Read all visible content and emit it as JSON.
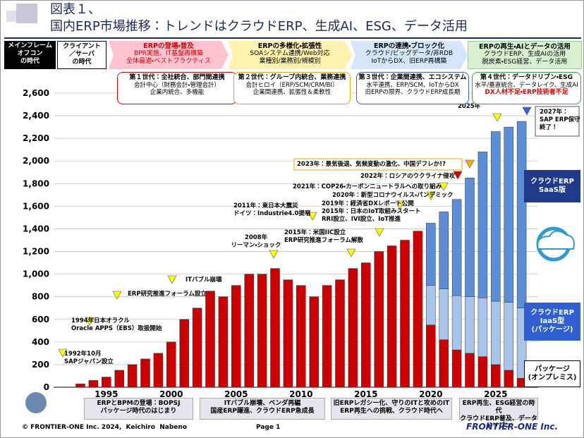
{
  "header": {
    "figure": "図表１、",
    "title": "国内ERP市場推移：トレンドはクラウドERP、生成AI、ESG、データ活用"
  },
  "eras": [
    {
      "title": "メインフレーム\nオフコン\nの時代"
    },
    {
      "title": "クライアント\n／サーバ\nの時代"
    },
    {
      "title": "ERPの登場・普及",
      "text": "BPR実施、IT基盤再構築\n全体最適・ベストプラクティス"
    },
    {
      "title": "ERPの多様化・拡張性",
      "text": "SOAシステム連携/Web対応\n業種別/業務別/規模別"
    },
    {
      "title": "ERPの連携・ブロック化",
      "text": "クラウド/ビッグデータ/非RDB\nIoTからDX、旧ERP再構築"
    },
    {
      "title": "ERPの再生・AIとデータの活用",
      "text": "クラウドERP、生成AIの活用\n脱炭素・ESG経営、データ活用"
    }
  ],
  "generations": [
    {
      "title": "第１世代：全社統合、部門間連携",
      "text": "会計中心（財務会計・管理会計）\n企業内統合、多機能"
    },
    {
      "title": "第２世代：グループ内統合、業務連携",
      "text": "会計ヒロイ（ERP/SCM/CRM/BI）\n企業間連携、拡張性＆柔軟性"
    },
    {
      "title": "第３世代：企業間連携、エコシステム",
      "text": "水平連携、ERP/SCM、IoTからDX\n旧ERPの限界、クラウドERP成長期"
    },
    {
      "title": "第４世代：データドリブン・ESG",
      "text": "水平/垂直統合、データレイク、生成AI",
      "alert": "DX人材不足・ERP技術者不足"
    }
  ],
  "chart_data": {
    "type": "stacked_bar",
    "categories": [
      null,
      null,
      "1995",
      null,
      null,
      null,
      null,
      "2000",
      null,
      null,
      null,
      null,
      "2005",
      null,
      null,
      null,
      null,
      "2010",
      null,
      null,
      null,
      null,
      "2015",
      null,
      null,
      null,
      null,
      "2020",
      null,
      null,
      null,
      null,
      "2025",
      null,
      null
    ],
    "series": [
      {
        "name": "パッケージ\n(オンプレミス)",
        "color": "#cc0000",
        "values": [
          30,
          60,
          90,
          150,
          200,
          250,
          300,
          400,
          600,
          700,
          850,
          800,
          900,
          1000,
          1000,
          1050,
          950,
          900,
          800,
          900,
          950,
          1050,
          1100,
          1200,
          1250,
          1300,
          1380,
          550,
          420,
          330,
          300,
          270,
          200,
          150,
          80
        ]
      },
      {
        "name": "クラウドERP\nIaaS型\n(パッケージ)",
        "color": "#a9c4eb",
        "values": [
          null,
          null,
          null,
          null,
          null,
          null,
          null,
          null,
          null,
          null,
          null,
          null,
          null,
          null,
          null,
          null,
          null,
          null,
          null,
          null,
          null,
          null,
          null,
          null,
          null,
          null,
          null,
          350,
          450,
          480,
          500,
          520,
          560,
          600,
          620
        ]
      },
      {
        "name": "クラウドERP\nSaaS版",
        "color": "#5b8ed6",
        "values": [
          null,
          null,
          null,
          null,
          null,
          null,
          null,
          null,
          null,
          null,
          null,
          null,
          null,
          null,
          null,
          null,
          null,
          null,
          null,
          null,
          null,
          null,
          null,
          null,
          null,
          null,
          null,
          550,
          680,
          850,
          1050,
          1290,
          1500,
          1550,
          1650
        ]
      }
    ],
    "ylim": [
      0,
      2600
    ],
    "yticks": [
      0,
      200,
      400,
      600,
      800,
      {
        "value": 1000,
        "label": "1,000"
      },
      {
        "value": 1200,
        "label": "1,200"
      },
      {
        "value": 1400,
        "label": "1,400"
      },
      {
        "value": 1600,
        "label": "1,600"
      },
      {
        "value": 1800,
        "label": "1,800"
      },
      {
        "value": 2000,
        "label": "2,000"
      },
      {
        "value": 2200,
        "label": "2,200"
      },
      {
        "value": 2400,
        "label": "2,400"
      },
      {
        "value": 2600,
        "label": "2,600"
      }
    ],
    "grid": true,
    "annotations": [
      {
        "text": "1992年10月\nSAPジャパン設立"
      },
      {
        "text": "1994年日本オラクル\nOracle APPS（EBS）取扱開始"
      },
      {
        "text": "ERP研究推進フォーラム設立"
      },
      {
        "text": "ITバブル崩壊"
      },
      {
        "text": "2008年\nリーマン・ショック"
      },
      {
        "text": "2011年：東日本大震災\nドイツ：Industrie4.0提唱"
      },
      {
        "text": "2015年：米国IIC設立\nERP研究推進フォーラム解散"
      },
      {
        "text": "2019年：経済省DXレポート公開\n2015年：日本のIoT取組みスタート\nRRI設立、IVI設立、IoT推進"
      },
      {
        "text": "2020年：新型コロナウイルス・パンデミック"
      },
      {
        "text": "2021年：COP26・カーボンニュートラルへの取り組み"
      },
      {
        "text": "2022年：ロシアのウクライナ侵攻"
      },
      {
        "text": "2023年：景気後退、気候変動の激化、中国デフレか!?"
      },
      {
        "text": "2025年"
      },
      {
        "text": "2027年：\nSAP ERP保守\n終了！"
      }
    ]
  },
  "bottom_eras": [
    {
      "text": "ERPとBPMの登場：BOPSJ\nパッケージ時代のはじまり"
    },
    {
      "text": "ITバブル崩壊、ベンダ再編\n国産ERP躍進、クラウドERP急成長"
    },
    {
      "text": "旧ERPレガシー化、守りのITと攻めのIT\nERP再生への挑戦、クラウド時代へ"
    },
    {
      "text": "ERP再生、ESG経営の時代\nクラウドERP普及、データドリブン"
    }
  ],
  "footer": {
    "copyright": "© FRONTIER-ONE Inc. 2024,  Keichiro  Nabeno",
    "page": "Page 1",
    "logo": "FRONTIER-ONE Inc."
  }
}
